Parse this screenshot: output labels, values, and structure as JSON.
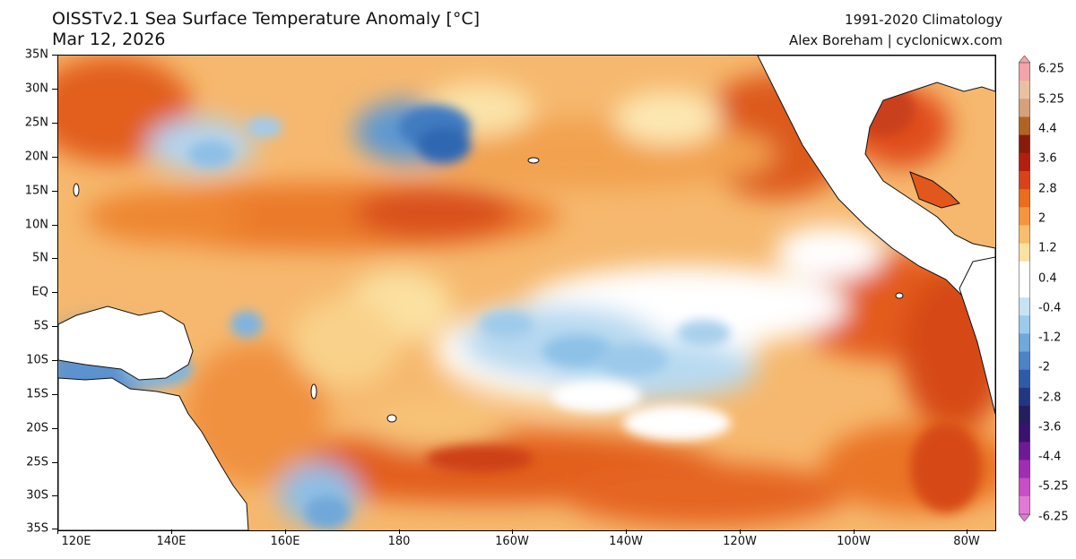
{
  "header": {
    "title": "OISSTv2.1 Sea Surface Temperature Anomaly [°C]",
    "date": "Mar 12, 2026",
    "climatology": "1991-2020 Climatology",
    "credit": "Alex Boreham | cyclonicwx.com"
  },
  "axes": {
    "lat_labels": [
      "35N",
      "30N",
      "25N",
      "20N",
      "15N",
      "10N",
      "5N",
      "EQ",
      "5S",
      "10S",
      "15S",
      "20S",
      "25S",
      "30S",
      "35S"
    ],
    "lon_labels": [
      "120E",
      "140E",
      "160E",
      "180",
      "160W",
      "140W",
      "120W",
      "100W",
      "80W"
    ]
  },
  "colorbar": {
    "labels": [
      "6.25",
      "5.25",
      "4.4",
      "3.6",
      "2.8",
      "2",
      "1.2",
      "0.4",
      "-0.4",
      "-1.2",
      "-2",
      "-2.8",
      "-3.6",
      "-4.4",
      "-5.25",
      "-6.25"
    ],
    "colors": [
      "#f3a3a9",
      "#e8c1a3",
      "#d3a17a",
      "#b06424",
      "#8a1b0b",
      "#b1200e",
      "#d8431a",
      "#ea6c1c",
      "#f4963f",
      "#f7be6b",
      "#fbe2a4",
      "#ffffff",
      "#ffffff",
      "#c9e2f3",
      "#9ccbea",
      "#6fa8d9",
      "#4b83c6",
      "#2f5aa8",
      "#223783",
      "#241e5e",
      "#3a1170",
      "#6d1a96",
      "#a02eb5",
      "#c94dc4",
      "#e07ad3"
    ]
  },
  "map": {
    "ocean_base_color": "#f6b368",
    "land_color": "#ffffff"
  }
}
